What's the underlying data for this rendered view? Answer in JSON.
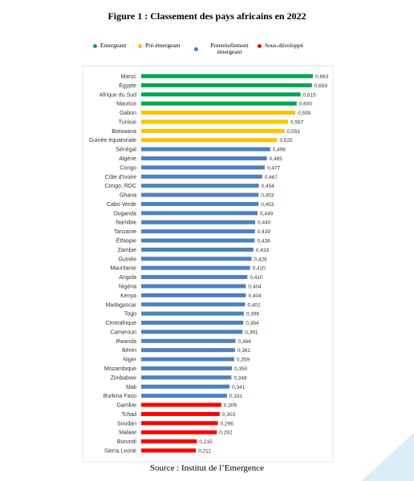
{
  "chart_data": {
    "type": "bar",
    "orientation": "horizontal",
    "title": "Figure 1 : Classement des pays africains en 2022",
    "source": "Source : Institut de l’Emergence",
    "legend": [
      {
        "name": "Emergeant",
        "color": "#00a651"
      },
      {
        "name": "Pré-émergeant",
        "color": "#ffc000"
      },
      {
        "name": "Potentiellement émergeant",
        "color": "#4f81bd"
      },
      {
        "name": "Sous-développé",
        "color": "#ff0000"
      }
    ],
    "categories": [
      "Maroc",
      "Égypte",
      "Afrique du Sud",
      "Maurice",
      "Gabon",
      "Tunisie",
      "Botswana",
      "Guinée équatoriale",
      "Sénégal",
      "Algérie",
      "Congo",
      "Côte d'Ivoire",
      "Congo, RDC",
      "Ghana",
      "Cabo Verde",
      "Ouganda",
      "Namibie",
      "Tanzanie",
      "Éthiopie",
      "Zambie",
      "Guinée",
      "Mauritanie",
      "Angola",
      "Nigéria",
      "Kenya",
      "Madagascar",
      "Togo",
      "Centrafrique",
      "Cameroun",
      "Rwanda",
      "Bénin",
      "Niger",
      "Mozambique",
      "Zimbabwe",
      "Mali",
      "Burkina Faso",
      "Gambie",
      "Tchad",
      "Soudan",
      "Malawi",
      "Burundi",
      "Sierra Leone"
    ],
    "values": [
      0.663,
      0.659,
      0.615,
      0.6,
      0.595,
      0.567,
      0.553,
      0.525,
      0.498,
      0.485,
      0.477,
      0.467,
      0.454,
      0.453,
      0.453,
      0.449,
      0.44,
      0.439,
      0.438,
      0.433,
      0.426,
      0.42,
      0.41,
      0.404,
      0.404,
      0.401,
      0.396,
      0.394,
      0.391,
      0.364,
      0.362,
      0.359,
      0.35,
      0.348,
      0.341,
      0.331,
      0.309,
      0.303,
      0.296,
      0.292,
      0.215,
      0.211
    ],
    "value_labels": [
      "0,663",
      "0,659",
      "0,615",
      "0,600",
      "0,595",
      "0,567",
      "0,553",
      "0,525",
      "0,498",
      "0,485",
      "0,477",
      "0,467",
      "0,454",
      "0,453",
      "0,453",
      "0,449",
      "0,440",
      "0,439",
      "0,438",
      "0,433",
      "0,426",
      "0,420",
      "0,410",
      "0,404",
      "0,404",
      "0,401",
      "0,396",
      "0,394",
      "0,391",
      "0,364",
      "0,362",
      "0,359",
      "0,350",
      "0,348",
      "0,341",
      "0,331",
      "0,309",
      "0,303",
      "0,296",
      "0,292",
      "0,215",
      "0,211"
    ],
    "colors": [
      "#00a651",
      "#00a651",
      "#00a651",
      "#00a651",
      "#ffc000",
      "#ffc000",
      "#ffc000",
      "#ffc000",
      "#4f81bd",
      "#4f81bd",
      "#4f81bd",
      "#4f81bd",
      "#4f81bd",
      "#4f81bd",
      "#4f81bd",
      "#4f81bd",
      "#4f81bd",
      "#4f81bd",
      "#4f81bd",
      "#4f81bd",
      "#4f81bd",
      "#4f81bd",
      "#4f81bd",
      "#4f81bd",
      "#4f81bd",
      "#4f81bd",
      "#4f81bd",
      "#4f81bd",
      "#4f81bd",
      "#4f81bd",
      "#4f81bd",
      "#4f81bd",
      "#4f81bd",
      "#4f81bd",
      "#4f81bd",
      "#4f81bd",
      "#ff0000",
      "#ff0000",
      "#ff0000",
      "#ff0000",
      "#ff0000",
      "#ff0000"
    ],
    "xlim": [
      0,
      0.7
    ]
  }
}
